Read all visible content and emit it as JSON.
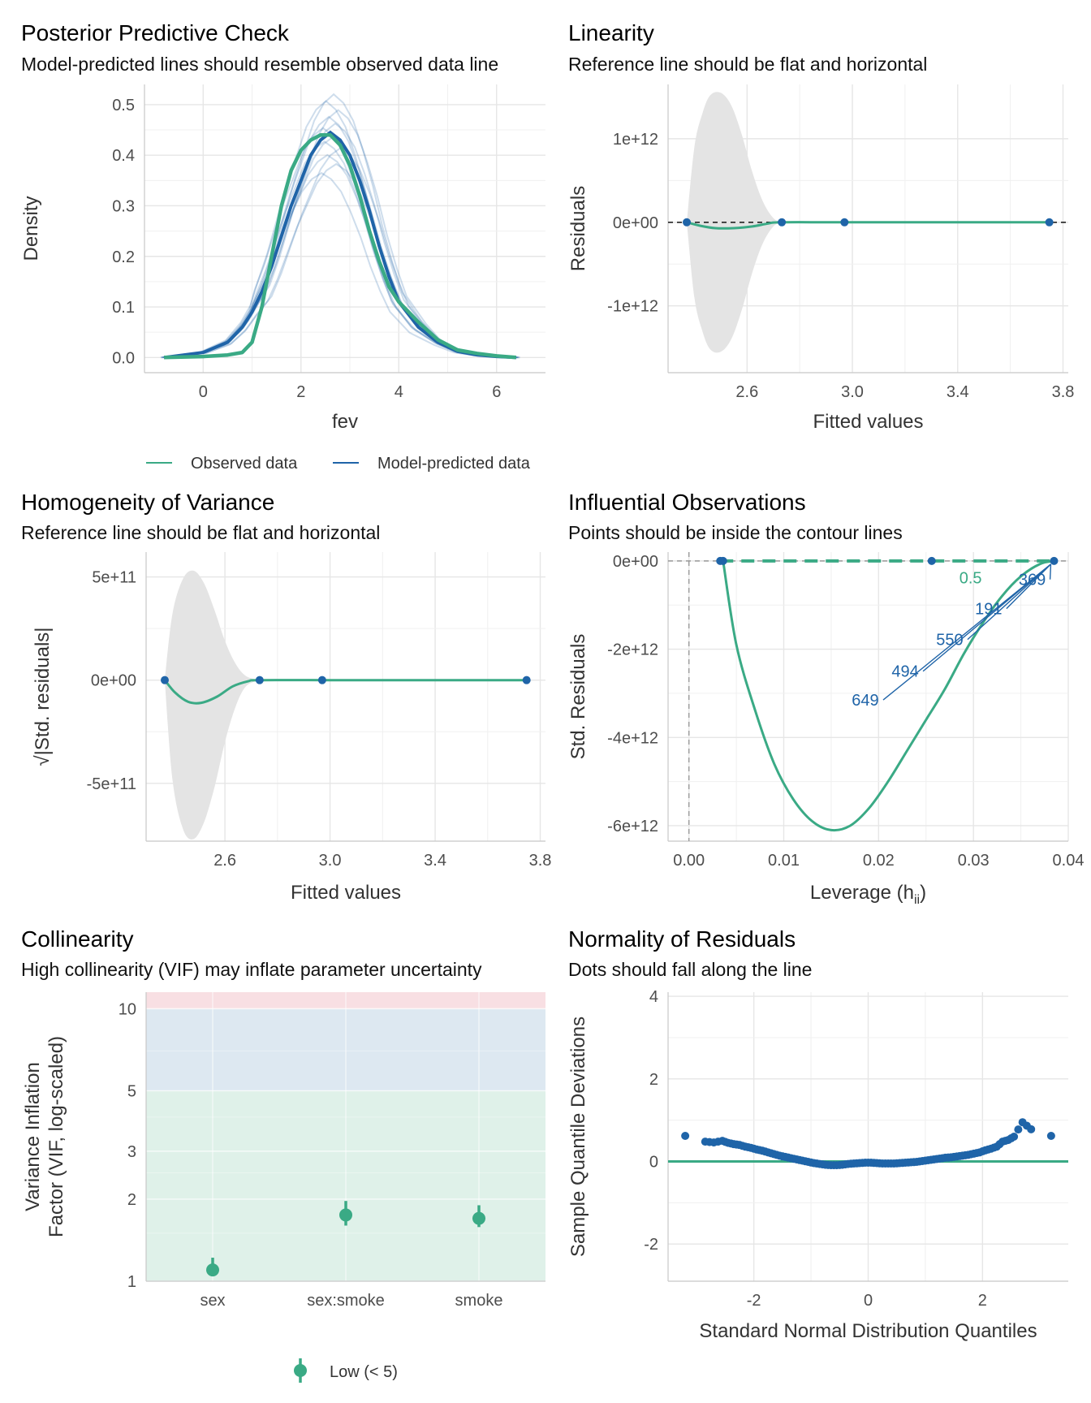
{
  "colors": {
    "observed": "#3aaa85",
    "predicted": "#1f64a8",
    "band": "#e4e4e4",
    "vif_low": "#dff1e9",
    "vif_moderate": "#dde8f1",
    "vif_high": "#f8dfe3"
  },
  "chart_data": [
    {
      "id": "ppc",
      "type": "line",
      "title": "Posterior Predictive Check",
      "subtitle": "Model-predicted lines should resemble observed data line",
      "xlabel": "fev",
      "ylabel": "Density",
      "xlim": [
        -1.2,
        7.0
      ],
      "ylim": [
        -0.03,
        0.54
      ],
      "xticks": [
        0,
        2,
        4,
        6
      ],
      "xtick_labels": [
        "0",
        "2",
        "4",
        "6"
      ],
      "yticks": [
        0.0,
        0.1,
        0.2,
        0.3,
        0.4,
        0.5
      ],
      "ytick_labels": [
        "0.0",
        "0.1",
        "0.2",
        "0.3",
        "0.4",
        "0.5"
      ],
      "grid": true,
      "legend_position": "bottom",
      "legend": [
        "Observed data",
        "Model-predicted data"
      ],
      "series": [
        {
          "name": "Observed data",
          "x": [
            -0.8,
            0.0,
            0.5,
            0.8,
            1.0,
            1.2,
            1.4,
            1.6,
            1.8,
            2.0,
            2.2,
            2.4,
            2.6,
            2.8,
            3.0,
            3.2,
            3.4,
            3.6,
            3.8,
            4.0,
            4.4,
            4.8,
            5.2,
            5.6,
            6.0,
            6.4
          ],
          "y": [
            0.0,
            0.002,
            0.005,
            0.01,
            0.03,
            0.1,
            0.2,
            0.3,
            0.37,
            0.41,
            0.43,
            0.44,
            0.44,
            0.42,
            0.38,
            0.32,
            0.25,
            0.19,
            0.14,
            0.11,
            0.07,
            0.035,
            0.015,
            0.008,
            0.003,
            0.0
          ]
        },
        {
          "name": "Model-predicted data",
          "x": [
            -0.8,
            0.0,
            0.5,
            0.8,
            1.0,
            1.2,
            1.4,
            1.6,
            1.8,
            2.0,
            2.2,
            2.4,
            2.6,
            2.8,
            3.0,
            3.2,
            3.4,
            3.6,
            3.8,
            4.0,
            4.4,
            4.8,
            5.2,
            5.6,
            6.0,
            6.4
          ],
          "y": [
            0.0,
            0.01,
            0.03,
            0.06,
            0.09,
            0.13,
            0.18,
            0.24,
            0.3,
            0.35,
            0.4,
            0.43,
            0.445,
            0.43,
            0.4,
            0.35,
            0.29,
            0.22,
            0.16,
            0.11,
            0.06,
            0.03,
            0.012,
            0.005,
            0.002,
            0.0
          ]
        }
      ]
    },
    {
      "id": "linearity",
      "type": "line",
      "title": "Linearity",
      "subtitle": "Reference line should be flat and horizontal",
      "xlabel": "Fitted values",
      "ylabel": "Residuals",
      "xlim": [
        2.3,
        3.82
      ],
      "ylim": [
        -1800000000000.0,
        1650000000000.0
      ],
      "xticks": [
        2.6,
        3.0,
        3.4,
        3.8
      ],
      "xtick_labels": [
        "2.6",
        "3.0",
        "3.4",
        "3.8"
      ],
      "yticks": [
        -1000000000000.0,
        0,
        1000000000000.0
      ],
      "ytick_labels": [
        "-1e+12",
        "0e+00",
        "1e+12"
      ],
      "grid": true,
      "reference_line": 0,
      "points": {
        "x": [
          2.371,
          2.732,
          2.97,
          3.748
        ],
        "y": [
          0,
          0,
          0,
          0
        ]
      },
      "smooth": {
        "x": [
          2.371,
          2.42,
          2.48,
          2.55,
          2.62,
          2.68,
          2.732,
          3.0,
          3.748
        ],
        "y": [
          0,
          -40000000000.0,
          -70000000000.0,
          -70000000000.0,
          -50000000000.0,
          -15000000000.0,
          0,
          0,
          0
        ]
      },
      "band": {
        "x": [
          2.371,
          2.4,
          2.43,
          2.46,
          2.5,
          2.54,
          2.58,
          2.62,
          2.66,
          2.7,
          2.732
        ],
        "half_width": [
          0,
          900000000000.0,
          1300000000000.0,
          1520000000000.0,
          1550000000000.0,
          1400000000000.0,
          1050000000000.0,
          600000000000.0,
          250000000000.0,
          50000000000.0,
          0
        ]
      }
    },
    {
      "id": "homogeneity",
      "type": "line",
      "title": "Homogeneity of Variance",
      "subtitle": "Reference line should be flat and horizontal",
      "xlabel": "Fitted values",
      "ylabel": "√|Std. residuals|",
      "xlim": [
        2.3,
        3.82
      ],
      "ylim": [
        -780000000000.0,
        620000000000.0
      ],
      "xticks": [
        2.6,
        3.0,
        3.4,
        3.8
      ],
      "xtick_labels": [
        "2.6",
        "3.0",
        "3.4",
        "3.8"
      ],
      "yticks": [
        -500000000000.0,
        0,
        500000000000.0
      ],
      "ytick_labels": [
        "-5e+11",
        "0e+00",
        "5e+11"
      ],
      "grid": true,
      "points": {
        "x": [
          2.371,
          2.732,
          2.97,
          3.748
        ],
        "y": [
          0,
          0,
          0,
          0
        ]
      },
      "smooth": {
        "x": [
          2.371,
          2.41,
          2.46,
          2.51,
          2.57,
          2.63,
          2.69,
          2.732,
          3.0,
          3.748
        ],
        "y": [
          0,
          -60000000000.0,
          -105000000000.0,
          -110000000000.0,
          -80000000000.0,
          -30000000000.0,
          -5000000000.0,
          0,
          0,
          0
        ]
      },
      "band": {
        "x": [
          2.371,
          2.4,
          2.44,
          2.48,
          2.52,
          2.56,
          2.6,
          2.64,
          2.68,
          2.732
        ],
        "upper": [
          0,
          320000000000.0,
          490000000000.0,
          530000000000.0,
          470000000000.0,
          340000000000.0,
          190000000000.0,
          80000000000.0,
          20000000000.0,
          0
        ],
        "lower": [
          0,
          -480000000000.0,
          -720000000000.0,
          -770000000000.0,
          -690000000000.0,
          -520000000000.0,
          -300000000000.0,
          -130000000000.0,
          -30000000000.0,
          0
        ]
      }
    },
    {
      "id": "influential",
      "type": "scatter",
      "title": "Influential Observations",
      "subtitle": "Points should be inside the contour lines",
      "xlabel": "Leverage (h",
      "xlabel_sub": "ii",
      "xlabel_close": ")",
      "ylabel": "Std. Residuals",
      "xlim": [
        -0.0022,
        0.04
      ],
      "ylim": [
        -6350000000000.0,
        200000000000.0
      ],
      "xticks": [
        0.0,
        0.01,
        0.02,
        0.03,
        0.04
      ],
      "xtick_labels": [
        "0.00",
        "0.01",
        "0.02",
        "0.03",
        "0.04"
      ],
      "yticks": [
        -6000000000000.0,
        -4000000000000.0,
        -2000000000000.0,
        0
      ],
      "ytick_labels": [
        "-6e+12",
        "-4e+12",
        "-2e+12",
        "0e+00"
      ],
      "grid": true,
      "points": {
        "x": [
          0.0033,
          0.0036,
          0.0256,
          0.0385
        ],
        "y": [
          0,
          0,
          0,
          0
        ]
      },
      "contour_label": "0.5",
      "contour_label_pos": {
        "x": 0.0297,
        "y": -380000000000.0
      },
      "smooth": {
        "x": [
          0.0036,
          0.005,
          0.007,
          0.009,
          0.011,
          0.013,
          0.015,
          0.017,
          0.019,
          0.021,
          0.023,
          0.025,
          0.027,
          0.029,
          0.031,
          0.033,
          0.035,
          0.037,
          0.0385
        ],
        "y": [
          0,
          -1900000000000.0,
          -3400000000000.0,
          -4600000000000.0,
          -5400000000000.0,
          -5900000000000.0,
          -6100000000000.0,
          -6000000000000.0,
          -5600000000000.0,
          -5000000000000.0,
          -4300000000000.0,
          -3600000000000.0,
          -2900000000000.0,
          -2100000000000.0,
          -1400000000000.0,
          -800000000000.0,
          -350000000000.0,
          -70000000000.0,
          0
        ]
      },
      "labels": [
        {
          "text": "369",
          "x": 0.0362,
          "y": -420000000000.0
        },
        {
          "text": "191",
          "x": 0.0316,
          "y": -1080000000000.0
        },
        {
          "text": "550",
          "x": 0.0275,
          "y": -1780000000000.0
        },
        {
          "text": "494",
          "x": 0.0228,
          "y": -2500000000000.0
        },
        {
          "text": "649",
          "x": 0.0186,
          "y": -3150000000000.0
        }
      ]
    },
    {
      "id": "collinearity",
      "type": "scatter",
      "title": "Collinearity",
      "subtitle": "High collinearity (VIF) may inflate parameter uncertainty",
      "xlabel": "",
      "ylabel": [
        "Variance Inflation",
        "Factor (VIF, log-scaled)"
      ],
      "log_y": true,
      "ylim": [
        1,
        11.5
      ],
      "yticks": [
        1,
        2,
        3,
        5,
        10
      ],
      "ytick_labels": [
        "1",
        "2",
        "3",
        "5",
        "10"
      ],
      "zones": [
        {
          "name": "low",
          "from": 1,
          "to": 5
        },
        {
          "name": "moderate",
          "from": 5,
          "to": 10
        },
        {
          "name": "high",
          "from": 10,
          "to": 11.5
        }
      ],
      "categories": [
        "sex",
        "sex:smoke",
        "smoke"
      ],
      "values": [
        1.1,
        1.75,
        1.7
      ],
      "ci_low": [
        1.05,
        1.6,
        1.58
      ],
      "ci_high": [
        1.22,
        1.97,
        1.9
      ],
      "legend_position": "bottom",
      "legend": [
        "Low (< 5)"
      ]
    },
    {
      "id": "normality",
      "type": "scatter",
      "title": "Normality of Residuals",
      "subtitle": "Dots should fall along the line",
      "xlabel": "Standard Normal Distribution Quantiles",
      "ylabel": "Sample Quantile Deviations",
      "xlim": [
        -3.5,
        3.5
      ],
      "ylim": [
        -2.9,
        4.1
      ],
      "xticks": [
        -2,
        0,
        2
      ],
      "xtick_labels": [
        "-2",
        "0",
        "2"
      ],
      "yticks": [
        -2,
        0,
        2,
        4
      ],
      "ytick_labels": [
        "-2",
        "0",
        "2",
        "4"
      ],
      "grid": true,
      "reference_line": 0,
      "points": {
        "x": [
          -3.2,
          -2.85,
          -2.7,
          -2.55,
          -2.45,
          -2.35,
          -2.25,
          -2.15,
          -2.05,
          -1.95,
          -1.85,
          -1.75,
          -1.65,
          -1.55,
          -1.45,
          -1.35,
          -1.25,
          -1.15,
          -1.05,
          -0.95,
          -0.85,
          -0.75,
          -0.65,
          -0.55,
          -0.45,
          -0.35,
          -0.25,
          -0.15,
          -0.05,
          0.05,
          0.15,
          0.25,
          0.35,
          0.45,
          0.55,
          0.65,
          0.75,
          0.85,
          0.95,
          1.05,
          1.15,
          1.25,
          1.35,
          1.45,
          1.55,
          1.65,
          1.75,
          1.85,
          1.95,
          2.05,
          2.15,
          2.25,
          2.35,
          2.45,
          2.55,
          2.7,
          2.85,
          3.2
        ],
        "y": [
          0.62,
          0.48,
          0.46,
          0.5,
          0.45,
          0.42,
          0.4,
          0.36,
          0.33,
          0.29,
          0.26,
          0.22,
          0.18,
          0.14,
          0.11,
          0.08,
          0.05,
          0.02,
          -0.01,
          -0.04,
          -0.06,
          -0.08,
          -0.09,
          -0.09,
          -0.08,
          -0.06,
          -0.05,
          -0.04,
          -0.03,
          -0.03,
          -0.04,
          -0.05,
          -0.05,
          -0.05,
          -0.04,
          -0.03,
          -0.02,
          -0.01,
          0.01,
          0.03,
          0.05,
          0.07,
          0.09,
          0.1,
          0.12,
          0.14,
          0.16,
          0.19,
          0.22,
          0.27,
          0.31,
          0.36,
          0.48,
          0.52,
          0.6,
          0.95,
          0.78,
          0.62
        ]
      }
    }
  ]
}
